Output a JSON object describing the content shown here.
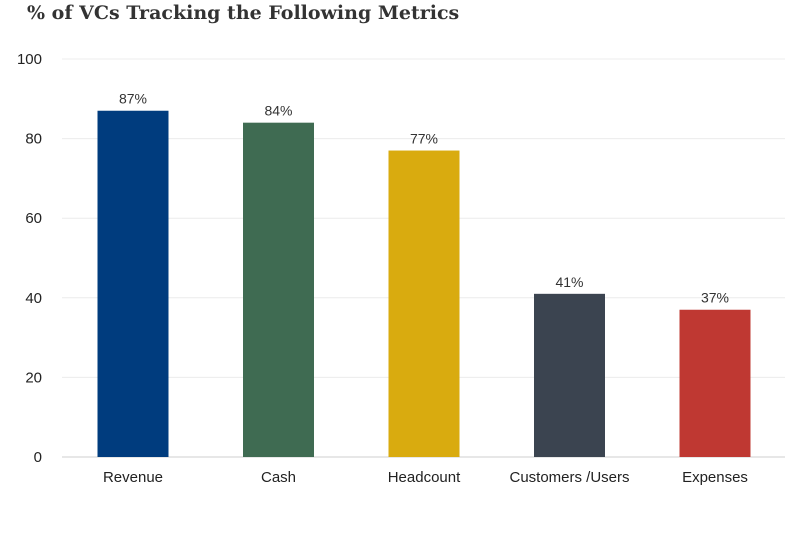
{
  "chart_data": {
    "type": "bar",
    "title": "% of VCs Tracking the Following Metrics",
    "categories": [
      "Revenue",
      "Cash",
      "Headcount",
      "Customers /Users",
      "Expenses"
    ],
    "values": [
      87,
      84,
      77,
      41,
      37
    ],
    "data_labels": [
      "87%",
      "84%",
      "77%",
      "41%",
      "37%"
    ],
    "colors": [
      "#003c7e",
      "#3f6b52",
      "#d9ab0f",
      "#3b4450",
      "#bf3832"
    ],
    "ylim": [
      0,
      100
    ],
    "yticks": [
      0,
      20,
      40,
      60,
      80,
      100
    ],
    "grid": true,
    "legend": false
  }
}
